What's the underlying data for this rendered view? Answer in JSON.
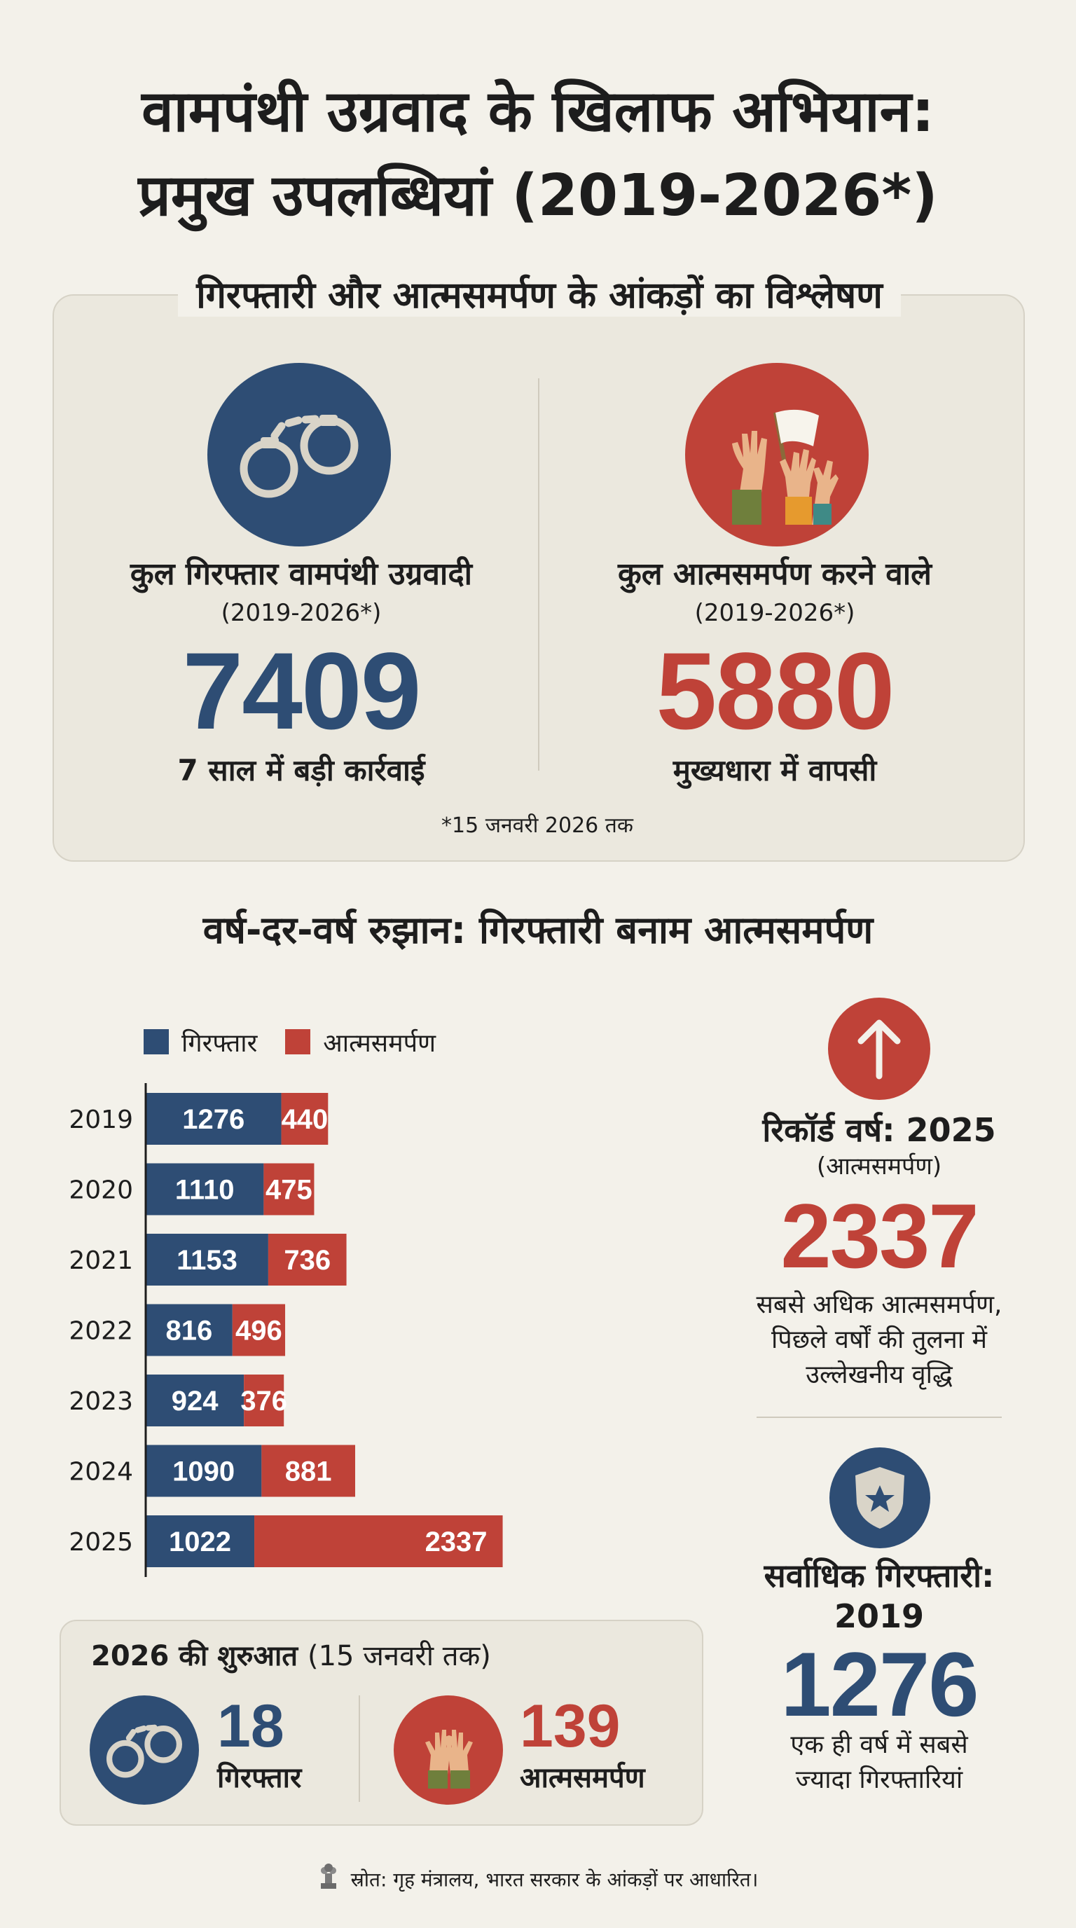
{
  "title_line1": "वामपंथी उग्रवाद के खिलाफ अभियान:",
  "title_line2": "प्रमुख उपलब्धियां (2019-2026*)",
  "summary": {
    "heading": "गिरफ्तारी और आत्मसमर्पण के आंकड़ों का विश्लेषण",
    "arrests": {
      "icon": "handcuffs-icon",
      "label": "कुल गिरफ्तार वामपंथी उग्रवादी",
      "period": "(2019-2026*)",
      "value": "7409",
      "caption": "7 साल में बड़ी कार्रवाई"
    },
    "surrenders": {
      "icon": "raised-hands-white-flag-icon",
      "label": "कुल आत्मसमर्पण करने वाले",
      "period": "(2019-2026*)",
      "value": "5880",
      "caption": "मुख्यधारा में वापसी"
    },
    "footnote": "*15 जनवरी 2026 तक"
  },
  "trend_title": "वर्ष-दर-वर्ष रुझान: गिरफ्तारी बनाम आत्मसमर्पण",
  "legend": {
    "arrests": "गिरफ्तार",
    "surrenders": "आत्मसमर्पण"
  },
  "colors": {
    "arrests": "#2e4d74",
    "surrenders": "#bf4238",
    "background": "#f3f1ea",
    "panel": "#ebe8de"
  },
  "chart_data": {
    "type": "bar",
    "orientation": "horizontal",
    "stacked": true,
    "categories": [
      "2019",
      "2020",
      "2021",
      "2022",
      "2023",
      "2024",
      "2025"
    ],
    "series": [
      {
        "name": "गिरफ्तार",
        "values": [
          1276,
          1110,
          1153,
          816,
          924,
          1090,
          1022
        ]
      },
      {
        "name": "आत्मसमर्पण",
        "values": [
          440,
          475,
          736,
          496,
          376,
          881,
          2337
        ]
      }
    ],
    "title": "वर्ष-दर-वर्ष रुझान: गिरफ्तारी बनाम आत्मसमर्पण",
    "legend_position": "top-left",
    "grid": false,
    "xlim": [
      0,
      3800
    ]
  },
  "record_surrender": {
    "icon": "up-arrow-icon",
    "title": "रिकॉर्ड वर्ष: 2025",
    "sub": "(आत्मसमर्पण)",
    "value": "2337",
    "desc_line1": "सबसे अधिक आत्मसमर्पण,",
    "desc_line2": "पिछले वर्षों की तुलना में",
    "desc_line3": "उल्लेखनीय वृद्धि"
  },
  "record_arrest": {
    "icon": "police-badge-icon",
    "title_line1": "सर्वाधिक गिरफ्तारी:",
    "title_line2": "2019",
    "value": "1276",
    "desc_line1": "एक ही वर्ष में सबसे",
    "desc_line2": "ज्यादा गिरफ्तारियां"
  },
  "start_2026": {
    "title": "2026 की शुरुआत",
    "title_note": "(15 जनवरी तक)",
    "arrests_value": "18",
    "arrests_label": "गिरफ्तार",
    "surrenders_value": "139",
    "surrenders_label": "आत्मसमर्पण"
  },
  "source": "स्रोत: गृह मंत्रालय, भारत सरकार के आंकड़ों पर आधारित।"
}
